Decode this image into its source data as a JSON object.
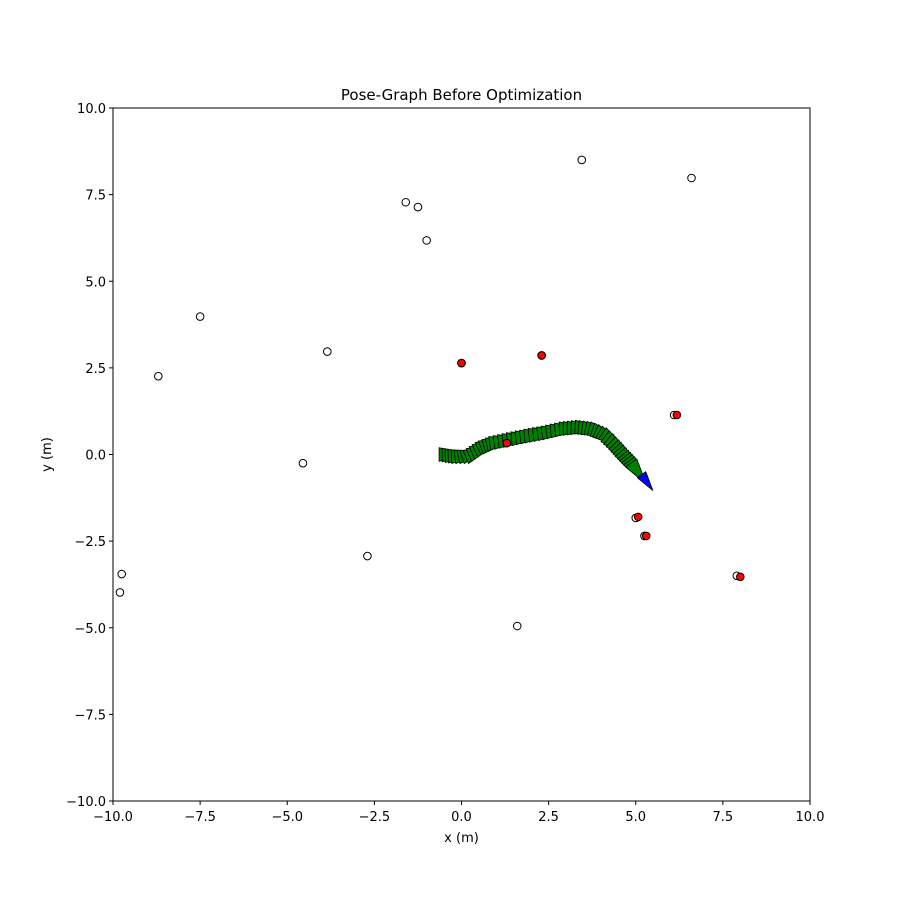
{
  "chart_data": {
    "type": "scatter",
    "title": "Pose-Graph Before Optimization",
    "xlabel": "x (m)",
    "ylabel": "y (m)",
    "xlim": [
      -10,
      10
    ],
    "ylim": [
      -10,
      10
    ],
    "x_ticks": [
      -10.0,
      -7.5,
      -5.0,
      -2.5,
      0.0,
      2.5,
      5.0,
      7.5,
      10.0
    ],
    "y_ticks": [
      -10.0,
      -7.5,
      -5.0,
      -2.5,
      0.0,
      2.5,
      5.0,
      7.5,
      10.0
    ],
    "x_tick_labels": [
      "−10.0",
      "−7.5",
      "−5.0",
      "−2.5",
      "0.0",
      "2.5",
      "5.0",
      "7.5",
      "10.0"
    ],
    "y_tick_labels": [
      "−10.0",
      "−7.5",
      "−5.0",
      "−2.5",
      "0.0",
      "2.5",
      "5.0",
      "7.5",
      "10.0"
    ],
    "grid": false,
    "colors": {
      "landmark_face": "#ffffff",
      "observed_landmark_face": "#ff0000",
      "marker_edge": "#000000",
      "pose_arrow": "#008000",
      "current_pose_arrow": "#0000ff"
    },
    "landmarks": [
      {
        "x": 3.45,
        "y": 8.5
      },
      {
        "x": 6.6,
        "y": 7.98
      },
      {
        "x": -1.6,
        "y": 7.28
      },
      {
        "x": -1.25,
        "y": 7.14
      },
      {
        "x": -1.0,
        "y": 6.18
      },
      {
        "x": -7.5,
        "y": 3.98
      },
      {
        "x": -3.85,
        "y": 2.97
      },
      {
        "x": -8.7,
        "y": 2.26
      },
      {
        "x": -4.55,
        "y": -0.25
      },
      {
        "x": -2.7,
        "y": -2.93
      },
      {
        "x": -9.75,
        "y": -3.45
      },
      {
        "x": -9.8,
        "y": -3.98
      },
      {
        "x": 1.6,
        "y": -4.95
      },
      {
        "x": 6.1,
        "y": 1.14
      },
      {
        "x": 5.0,
        "y": -1.83
      },
      {
        "x": 5.25,
        "y": -2.35
      },
      {
        "x": 7.9,
        "y": -3.5
      },
      {
        "x": 0.0,
        "y": 2.64
      },
      {
        "x": 2.3,
        "y": 2.86
      },
      {
        "x": 1.3,
        "y": 0.33
      }
    ],
    "observed_landmarks": [
      {
        "x": 0.0,
        "y": 2.64
      },
      {
        "x": 2.3,
        "y": 2.86
      },
      {
        "x": 1.3,
        "y": 0.33
      },
      {
        "x": 6.18,
        "y": 1.14
      },
      {
        "x": 5.07,
        "y": -1.8
      },
      {
        "x": 5.3,
        "y": -2.35
      },
      {
        "x": 8.0,
        "y": -3.53
      }
    ],
    "poses": [
      {
        "x": -0.45,
        "y": 0.0,
        "theta": 0.0
      },
      {
        "x": -0.1,
        "y": -0.05,
        "theta": 0.05
      },
      {
        "x": 0.3,
        "y": 0.0,
        "theta": 0.4
      },
      {
        "x": 0.65,
        "y": 0.25,
        "theta": 0.45
      },
      {
        "x": 1.0,
        "y": 0.35,
        "theta": 0.15
      },
      {
        "x": 1.5,
        "y": 0.45,
        "theta": 0.1
      },
      {
        "x": 2.0,
        "y": 0.55,
        "theta": 0.1
      },
      {
        "x": 2.5,
        "y": 0.65,
        "theta": 0.15
      },
      {
        "x": 3.0,
        "y": 0.75,
        "theta": 0.05
      },
      {
        "x": 3.45,
        "y": 0.78,
        "theta": -0.05
      },
      {
        "x": 3.85,
        "y": 0.7,
        "theta": -0.25
      },
      {
        "x": 4.2,
        "y": 0.5,
        "theta": -0.6
      },
      {
        "x": 4.5,
        "y": 0.15,
        "theta": -0.8
      },
      {
        "x": 4.75,
        "y": -0.15,
        "theta": -0.9
      },
      {
        "x": 4.98,
        "y": -0.4,
        "theta": -0.95
      }
    ],
    "current_pose": {
      "x": 5.25,
      "y": -0.7,
      "theta": -0.95
    }
  }
}
